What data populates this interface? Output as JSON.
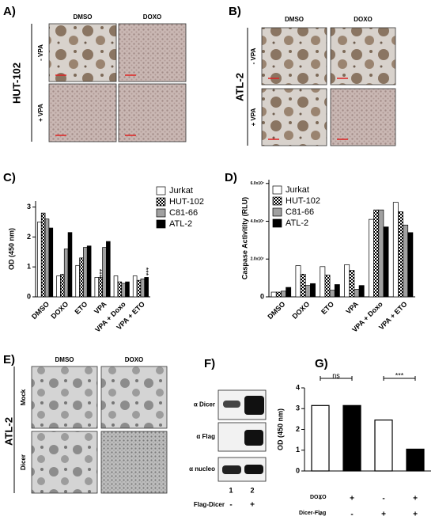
{
  "panels": {
    "A": {
      "label": "A)",
      "side_label": "HUT-102",
      "columns": [
        "DMSO",
        "DOXO"
      ],
      "rows": [
        "- VPA",
        "+ VPA"
      ]
    },
    "B": {
      "label": "B)",
      "side_label": "ATL-2",
      "columns": [
        "DMSO",
        "DOXO"
      ],
      "rows": [
        "- VPA",
        "+ VPA"
      ]
    },
    "E": {
      "label": "E)",
      "side_label": "ATL-2",
      "columns": [
        "DMSO",
        "DOXO"
      ],
      "rows": [
        "Mock",
        "Dicer"
      ]
    },
    "F": {
      "label": "F)",
      "antibodies": [
        "α Dicer",
        "α Flag",
        "α nucleo"
      ],
      "lanes": [
        "1",
        "2"
      ],
      "condition": {
        "label": "Flag-Dicer",
        "values": [
          "-",
          "+"
        ]
      }
    }
  },
  "chart_data": [
    {
      "type": "bar",
      "label": "C)",
      "y_label": "OD (450 nm)",
      "categories": [
        "DMSO",
        "DOXO",
        "ETO",
        "VPA",
        "VPA + Doxo",
        "VPA + ETO"
      ],
      "series": [
        {
          "name": "Jurkat",
          "color": "#ffffff",
          "values": [
            2.5,
            0.7,
            1.05,
            0.65,
            0.7,
            0.7
          ]
        },
        {
          "name": "HUT-102",
          "color": "#ffffff",
          "fill_pattern": "checker",
          "values": [
            2.8,
            0.75,
            1.3,
            0.65,
            0.5,
            0.55
          ]
        },
        {
          "name": "C81-66",
          "color": "#a0a0a0",
          "values": [
            2.6,
            1.6,
            1.65,
            1.65,
            0.45,
            0.6
          ]
        },
        {
          "name": "ATL-2",
          "color": "#000000",
          "values": [
            2.3,
            2.15,
            1.7,
            1.85,
            0.5,
            0.65
          ]
        }
      ],
      "ylim": [
        0,
        3.2
      ],
      "yticks": [
        0,
        1,
        2,
        3
      ],
      "annotations": [
        "***",
        "***"
      ]
    },
    {
      "type": "bar",
      "label": "D)",
      "y_label": "Caspase Activitity (RLU)",
      "categories": [
        "DMSO",
        "DOXO",
        "ETO",
        "VPA",
        "VPA + Doxo",
        "VPA + ETO"
      ],
      "series": [
        {
          "name": "Jurkat",
          "color": "#ffffff",
          "values": [
            2500000,
            16500000,
            16000000,
            17000000,
            41000000,
            50000000
          ]
        },
        {
          "name": "HUT-102",
          "color": "#ffffff",
          "fill_pattern": "checker",
          "values": [
            2500000,
            12000000,
            11500000,
            14000000,
            46000000,
            45000000
          ]
        },
        {
          "name": "C81-66",
          "color": "#a0a0a0",
          "values": [
            3000000,
            6000000,
            3500000,
            4000000,
            46000000,
            38000000
          ]
        },
        {
          "name": "ATL-2",
          "color": "#000000",
          "values": [
            5000000,
            7000000,
            6500000,
            6000000,
            37000000,
            34000000
          ]
        }
      ],
      "ylim": [
        0,
        62000000
      ],
      "yticks": [
        0,
        {
          "value": 20000000,
          "label": "2.0x10⁷"
        },
        {
          "value": 40000000,
          "label": "4.0x10⁷"
        },
        {
          "value": 60000000,
          "label": "6.0x10⁷"
        }
      ]
    },
    {
      "type": "bar",
      "label": "G)",
      "y_label": "OD (450 nm)",
      "values": [
        3.15,
        3.15,
        2.45,
        1.05
      ],
      "colors": [
        "#ffffff",
        "#000000",
        "#ffffff",
        "#000000"
      ],
      "ylim": [
        0,
        4
      ],
      "yticks": [
        0,
        1,
        2,
        3,
        4
      ],
      "annotations": [
        "ns",
        "***"
      ],
      "conditions": [
        {
          "label": "DOXO",
          "values": [
            "-",
            "+",
            "-",
            "+"
          ]
        },
        {
          "label": "Dicer-Flag",
          "values": [
            "-",
            "-",
            "+",
            "+"
          ]
        }
      ]
    }
  ]
}
